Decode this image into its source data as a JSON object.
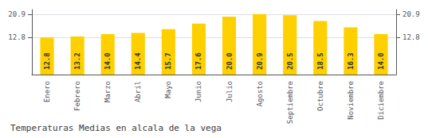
{
  "chart_data": {
    "type": "bar",
    "title": "Temperaturas Medias en alcala de la vega",
    "categories": [
      "Enero",
      "Febrero",
      "Marzo",
      "Abril",
      "Mayo",
      "Junio",
      "Julio",
      "Agosto",
      "Septiembre",
      "Octubre",
      "Noviembre",
      "Diciembre"
    ],
    "values": [
      12.8,
      13.2,
      14.0,
      14.4,
      15.7,
      17.6,
      20.0,
      20.9,
      20.5,
      18.5,
      16.3,
      14.0
    ],
    "value_labels": [
      "12.8",
      "13.2",
      "14.0",
      "14.4",
      "15.7",
      "17.6",
      "20.0",
      "20.9",
      "20.5",
      "18.5",
      "16.3",
      "14.0"
    ],
    "color": "#FFD000",
    "ylim": [
      0,
      22.5
    ],
    "yticks": [
      12.8,
      20.9
    ],
    "y2lim": [
      0,
      22.5
    ],
    "y2ticks": [
      12.8,
      20.9
    ],
    "grid": true,
    "data_labels": true
  }
}
